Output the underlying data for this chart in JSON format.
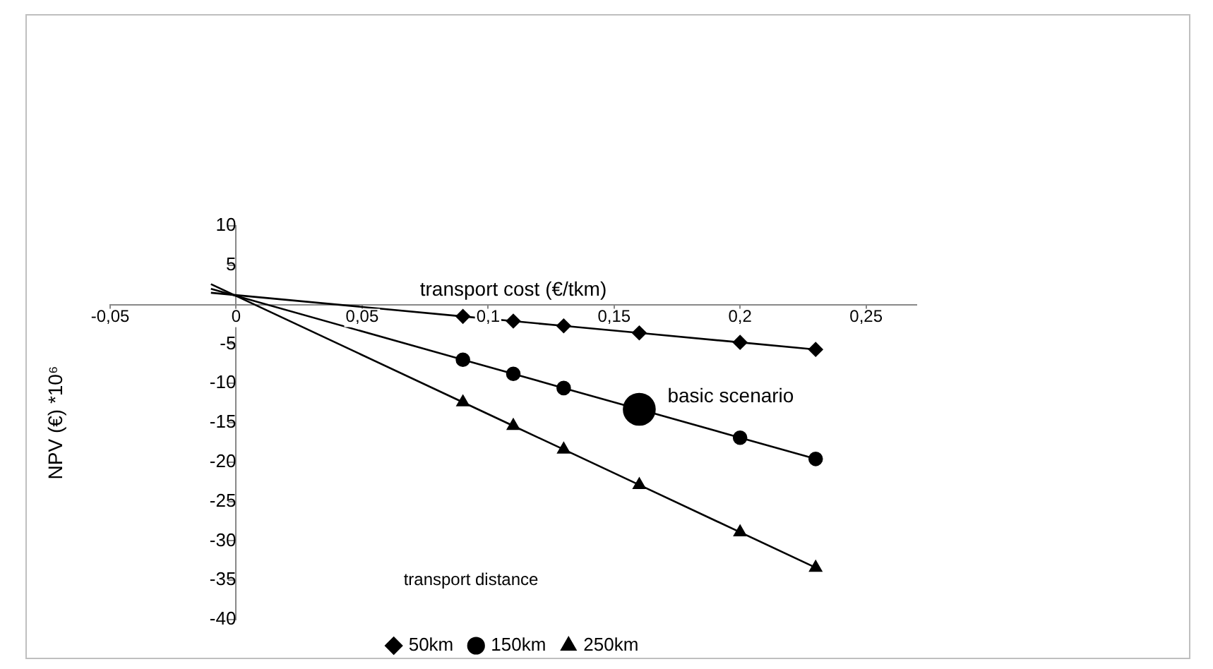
{
  "chart_data": {
    "type": "line",
    "xlabel": "transport cost (€/tkm)",
    "ylabel": "NPV (€) *10⁶",
    "legend_title": "transport distance",
    "xlim": [
      -0.05,
      0.27
    ],
    "xticks": [
      {
        "value": -0.05,
        "label": "-0,05"
      },
      0,
      {
        "value": 0.05,
        "label": "0,05"
      },
      {
        "value": 0.1,
        "label": "0,1"
      },
      {
        "value": 0.15,
        "label": "0,15"
      },
      {
        "value": 0.2,
        "label": "0,2"
      },
      {
        "value": 0.25,
        "label": "0,25"
      }
    ],
    "ylim": [
      -40,
      10
    ],
    "yticks": [
      -40,
      -35,
      -30,
      -25,
      -20,
      -15,
      -10,
      -5,
      {
        "value": 0,
        "label": null
      },
      5,
      10
    ],
    "grid": false,
    "legend": "bottom",
    "line_style": "solid",
    "series": [
      {
        "name": "50km",
        "color": "#000000",
        "marker": "diamond",
        "x": [
          -0.01,
          0.09,
          0.11,
          0.13,
          0.16,
          0.2,
          0.23
        ],
        "values": [
          1.5,
          -1.5,
          -2.1,
          -2.7,
          -3.6,
          -4.8,
          -5.7
        ]
      },
      {
        "name": "150km",
        "color": "#000000",
        "marker": "circle",
        "x": [
          -0.01,
          0.09,
          0.11,
          0.13,
          0.16,
          0.2,
          0.23
        ],
        "values": [
          2.0,
          -7.0,
          -8.8,
          -10.6,
          -13.3,
          -16.9,
          -19.6
        ]
      },
      {
        "name": "250km",
        "color": "#000000",
        "marker": "triangle",
        "x": [
          -0.01,
          0.09,
          0.11,
          0.13,
          0.16,
          0.2,
          0.23
        ],
        "values": [
          2.6,
          -12.4,
          -15.4,
          -18.4,
          -22.9,
          -28.9,
          -33.4
        ]
      },
      {
        "type": "scatter",
        "color": "#000000",
        "marker": "circle",
        "x": [
          0.16
        ],
        "values": [
          -13.3
        ]
      }
    ],
    "annotations": [
      {
        "text": "basic scenario",
        "x": 0.16,
        "y": -13.3
      }
    ]
  }
}
